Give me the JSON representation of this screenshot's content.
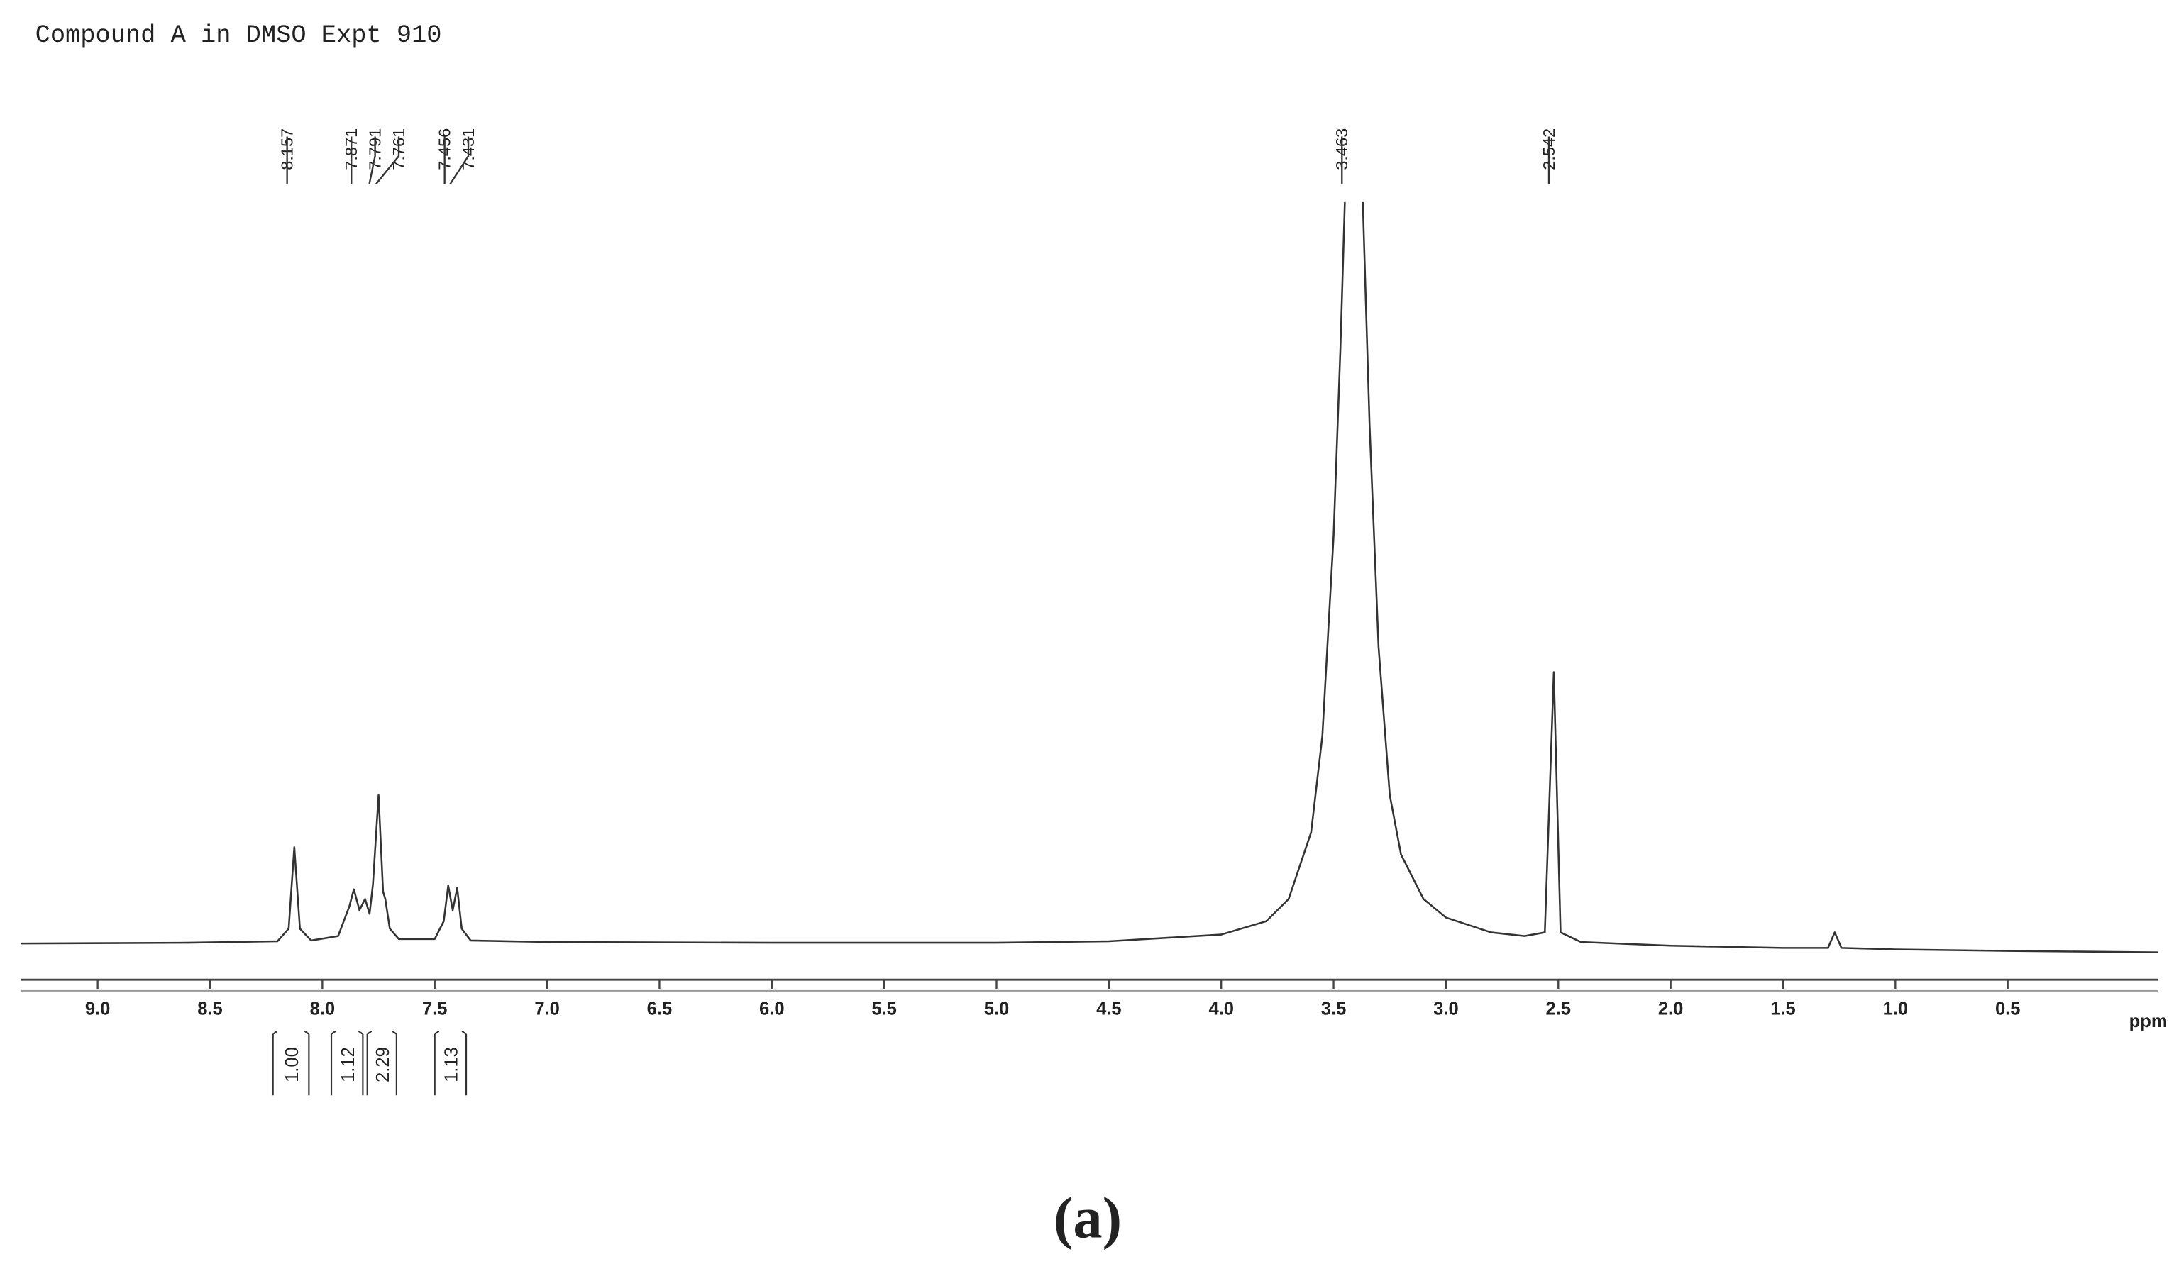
{
  "chart_data": {
    "type": "line",
    "title": "Compound A in DMSO Expt 910",
    "xlabel": "ppm",
    "caption": "(a)",
    "color": "#333333",
    "xlim": [
      9.34,
      -0.17
    ],
    "ylim": [
      -5,
      100
    ],
    "xticks": [
      {
        "value": 9,
        "label": "9.0"
      },
      8.5,
      {
        "value": 8,
        "label": "8.0"
      },
      7.5,
      {
        "value": 7,
        "label": "7.0"
      },
      6.5,
      {
        "value": 6,
        "label": "6.0"
      },
      5.5,
      {
        "value": 5,
        "label": "5.0"
      },
      4.5,
      {
        "value": 4,
        "label": "4.0"
      },
      3.5,
      {
        "value": 3,
        "label": "3.0"
      },
      2.5,
      {
        "value": 2,
        "label": "2.0"
      },
      1.5,
      {
        "value": 1,
        "label": "1.0"
      },
      0.5
    ],
    "x": [
      9.34,
      8.6,
      8.2,
      8.15,
      8.125,
      8.1,
      8.05,
      7.93,
      7.88,
      7.86,
      7.835,
      7.81,
      7.79,
      7.775,
      7.75,
      7.73,
      7.72,
      7.7,
      7.66,
      7.5,
      7.46,
      7.44,
      7.42,
      7.4,
      7.38,
      7.34,
      7.0,
      6.0,
      5.0,
      4.5,
      4.0,
      3.8,
      3.7,
      3.6,
      3.55,
      3.5,
      3.47,
      3.45,
      3.41,
      3.37,
      3.34,
      3.3,
      3.25,
      3.2,
      3.1,
      3.0,
      2.8,
      2.65,
      2.56,
      2.52,
      2.49,
      2.4,
      2.0,
      1.5,
      1.3,
      1.27,
      1.24,
      1.0,
      0.5,
      -0.17
    ],
    "values": [
      0,
      0.1,
      0.3,
      2,
      13,
      2,
      0.4,
      1,
      5,
      7.3,
      4.5,
      6,
      4,
      8,
      20,
      7,
      6,
      2,
      0.6,
      0.6,
      3,
      7.8,
      4.5,
      7.5,
      2,
      0.4,
      0.2,
      0.1,
      0.1,
      0.3,
      1.2,
      3,
      6,
      15,
      28,
      55,
      80,
      100,
      null,
      100,
      70,
      40,
      20,
      12,
      6,
      3.5,
      1.5,
      1,
      1.5,
      36.6,
      1.5,
      0.2,
      -0.3,
      -0.6,
      -0.6,
      1.5,
      -0.6,
      -0.8,
      -1,
      -1.2
    ],
    "peak_labels": [
      8.157,
      7.871,
      7.791,
      7.761,
      7.456,
      7.431,
      3.463,
      2.542
    ],
    "integrals": [
      {
        "value": 1,
        "label": "1.00",
        "range": [
          8.22,
          8.06
        ]
      },
      {
        "value": 1.12,
        "label": "1.12",
        "range": [
          7.96,
          7.82
        ]
      },
      {
        "value": 2.29,
        "label": "2.29",
        "range": [
          7.8,
          7.67
        ]
      },
      {
        "value": 1.13,
        "label": "1.13",
        "range": [
          7.5,
          7.36
        ]
      }
    ]
  }
}
